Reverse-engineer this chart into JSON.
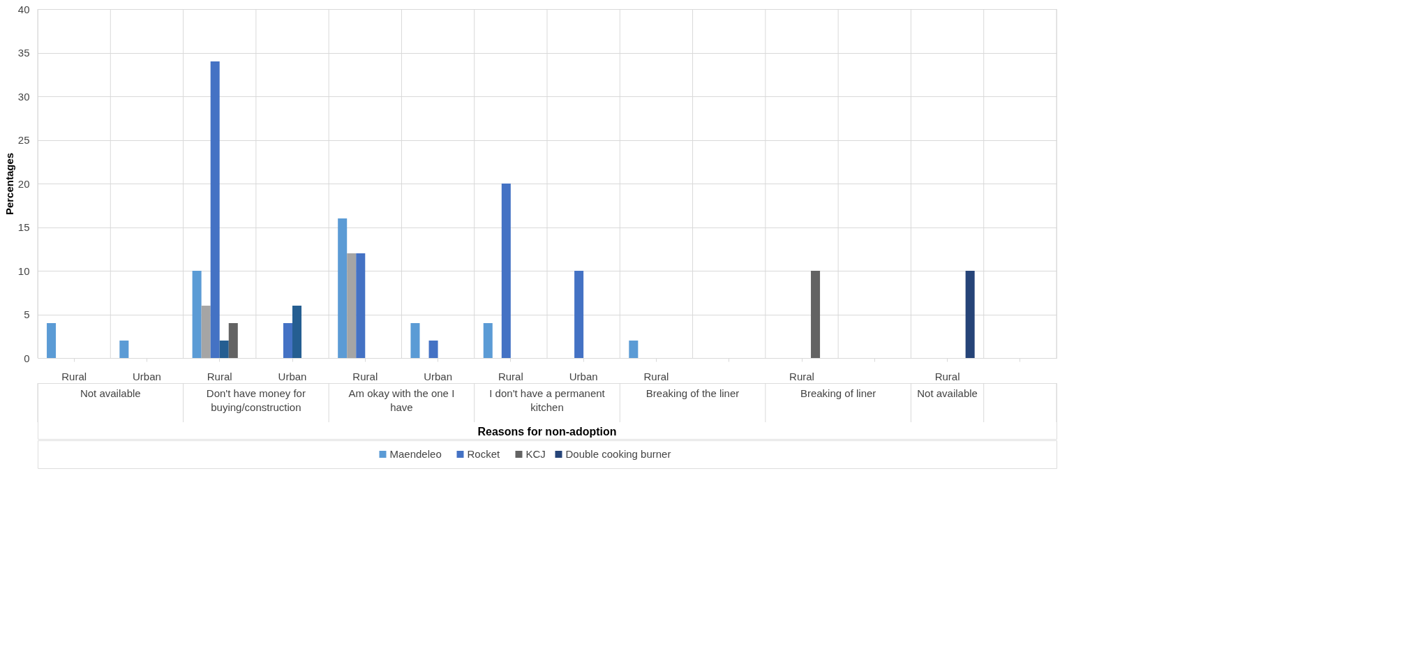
{
  "chart_data": {
    "type": "bar",
    "xlabel": "Reasons for non-adoption",
    "ylabel": "Percentages",
    "categories": [
      "Rural",
      "Urban",
      "Rural",
      "Urban",
      "Rural",
      "Urban",
      "Rural",
      "Urban",
      "Rural",
      null,
      "Rural",
      null,
      "Rural",
      null
    ],
    "annotations": [
      "Not available",
      "Don't have money for buying/construction",
      "Am okay with the one I have",
      "I don't have a permanent kitchen",
      "Breaking of the liner",
      "Breaking of liner",
      "Not available"
    ],
    "series": [
      {
        "name": "Maendeleo",
        "color": "#5b9bd5",
        "values": [
          4,
          2,
          10,
          null,
          16,
          4,
          4,
          null,
          2,
          null,
          null,
          null,
          null,
          null
        ]
      },
      {
        "color": "#a5a5a5",
        "values": [
          null,
          null,
          6,
          null,
          12,
          null,
          null,
          null,
          null,
          null,
          null,
          null,
          null,
          null
        ]
      },
      {
        "name": "Rocket",
        "color": "#4472c4",
        "values": [
          null,
          null,
          34,
          4,
          12,
          2,
          20,
          10,
          null,
          null,
          null,
          null,
          null,
          null
        ]
      },
      {
        "color": "#255e91",
        "values": [
          null,
          null,
          2,
          6,
          null,
          null,
          null,
          null,
          null,
          null,
          null,
          null,
          null,
          null
        ]
      },
      {
        "name": "KCJ",
        "color": "#636363",
        "values": [
          null,
          null,
          4,
          null,
          null,
          null,
          null,
          null,
          null,
          null,
          10,
          null,
          null,
          null
        ]
      },
      {
        "name": "Double cooking burner",
        "color": "#264478",
        "values": [
          null,
          null,
          null,
          null,
          null,
          null,
          null,
          null,
          null,
          null,
          null,
          null,
          10,
          null
        ]
      }
    ],
    "ylim": [
      0,
      40
    ],
    "yticks": [
      0,
      5,
      10,
      15,
      20,
      25,
      30,
      35,
      40
    ],
    "grid": true,
    "legend": "bottom"
  }
}
